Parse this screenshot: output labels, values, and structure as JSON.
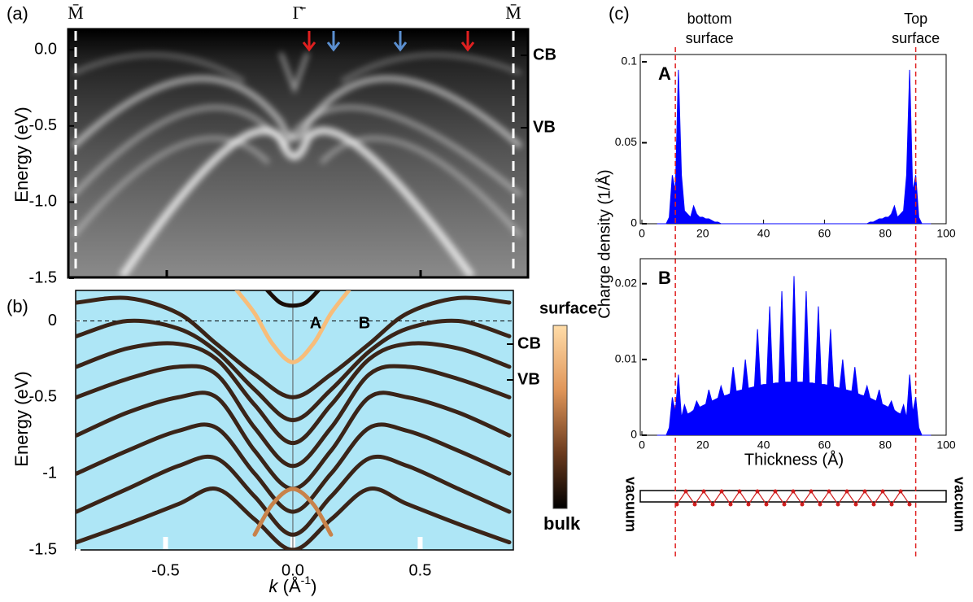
{
  "chart_data": [
    {
      "type": "image",
      "panel_label": "(a)",
      "ylabel": "Energy (eV)",
      "ylim": [
        -1.5,
        0.14
      ],
      "yticks": [
        {
          "value": 0,
          "label": "0.0"
        },
        {
          "value": -0.5,
          "label": "-0.5"
        },
        {
          "value": -1,
          "label": "-1.0"
        },
        {
          "value": -1.5,
          "label": "-1.5"
        }
      ],
      "point_labels": [
        "M̄",
        "Γ̄",
        "M̄"
      ],
      "band_labels": [
        "CB",
        "VB"
      ]
    },
    {
      "type": "line",
      "panel_label": "(b)",
      "ylabel": "Energy (eV)",
      "xlabel": [
        "k",
        " (Å",
        "-1",
        ")"
      ],
      "xlim": [
        -0.853,
        0.866
      ],
      "xticks": [
        {
          "value": -0.5,
          "label": "-0.5"
        },
        {
          "value": 0,
          "label": "0.0"
        },
        {
          "value": 0.5,
          "label": "0.5"
        }
      ],
      "ylim": [
        -1.5,
        0.2
      ],
      "yticks": [
        0,
        -0.5,
        -1,
        -1.5
      ],
      "band_labels": [
        "CB",
        "VB"
      ],
      "point_labels": [
        "A",
        "B"
      ],
      "colorbar_labels": [
        "surface",
        "bulk"
      ],
      "series": [
        {
          "color": "#3a2418",
          "x": [
            -0.85,
            -0.65,
            -0.45,
            -0.3,
            -0.15,
            0,
            0.15,
            0.3,
            0.45,
            0.65,
            0.85
          ],
          "values": [
            0.12,
            0.15,
            0.05,
            -0.15,
            -0.35,
            -0.5,
            -0.35,
            -0.15,
            0.05,
            0.15,
            0.12
          ]
        },
        {
          "color": "#3a2418",
          "x": [
            -0.85,
            -0.65,
            -0.45,
            -0.3,
            -0.15,
            0,
            0.15,
            0.3,
            0.45,
            0.65,
            0.85
          ],
          "values": [
            -0.1,
            0,
            -0.05,
            -0.2,
            -0.45,
            -0.65,
            -0.45,
            -0.2,
            -0.05,
            0,
            -0.1
          ]
        },
        {
          "color": "#3a2418",
          "x": [
            -0.85,
            -0.65,
            -0.45,
            -0.3,
            -0.15,
            0,
            0.15,
            0.3,
            0.45,
            0.65,
            0.85
          ],
          "values": [
            -0.3,
            -0.18,
            -0.15,
            -0.25,
            -0.55,
            -0.8,
            -0.55,
            -0.25,
            -0.15,
            -0.18,
            -0.3
          ]
        },
        {
          "color": "#3a2418",
          "x": [
            -0.85,
            -0.65,
            -0.45,
            -0.3,
            -0.15,
            0,
            0.15,
            0.3,
            0.45,
            0.65,
            0.85
          ],
          "values": [
            -0.5,
            -0.38,
            -0.3,
            -0.35,
            -0.7,
            -0.95,
            -0.7,
            -0.35,
            -0.3,
            -0.38,
            -0.5
          ]
        },
        {
          "color": "#3a2418",
          "x": [
            -0.85,
            -0.65,
            -0.45,
            -0.3,
            -0.15,
            0,
            0.15,
            0.3,
            0.45,
            0.65,
            0.85
          ],
          "values": [
            -0.75,
            -0.6,
            -0.5,
            -0.5,
            -0.85,
            -1.1,
            -0.85,
            -0.5,
            -0.5,
            -0.6,
            -0.75
          ]
        },
        {
          "color": "#3a2418",
          "x": [
            -0.85,
            -0.65,
            -0.45,
            -0.3,
            -0.15,
            0,
            0.15,
            0.3,
            0.45,
            0.65,
            0.85
          ],
          "values": [
            -1,
            -0.85,
            -0.72,
            -0.7,
            -1,
            -1.25,
            -1,
            -0.7,
            -0.72,
            -0.85,
            -1
          ]
        },
        {
          "color": "#3a2418",
          "x": [
            -0.85,
            -0.65,
            -0.45,
            -0.3,
            -0.15,
            0,
            0.15,
            0.3,
            0.45,
            0.65,
            0.85
          ],
          "values": [
            -1.25,
            -1.1,
            -0.95,
            -0.9,
            -1.15,
            -1.4,
            -1.15,
            -0.9,
            -0.95,
            -1.1,
            -1.25
          ]
        },
        {
          "color": "#3a2418",
          "x": [
            -0.85,
            -0.65,
            -0.45,
            -0.3,
            -0.15,
            0,
            0.15,
            0.3,
            0.45,
            0.65,
            0.85
          ],
          "values": [
            -1.45,
            -1.33,
            -1.2,
            -1.1,
            -1.3,
            -1.5,
            -1.3,
            -1.1,
            -1.2,
            -1.33,
            -1.45
          ]
        },
        {
          "color": "#1a0e08",
          "x": [
            -0.1,
            -0.05,
            0,
            0.05,
            0.1
          ],
          "values": [
            0.2,
            0.12,
            0.1,
            0.12,
            0.2
          ]
        },
        {
          "color": "#c8824a",
          "x": [
            -0.15,
            -0.08,
            0,
            0.08,
            0.15
          ],
          "values": [
            -1.4,
            -1.2,
            -1.1,
            -1.2,
            -1.4
          ]
        },
        {
          "color": "#f7bd7a",
          "x": [
            -0.22,
            -0.15,
            -0.08,
            0,
            0.08,
            0.15,
            0.22
          ],
          "values": [
            0.2,
            0.05,
            -0.15,
            -0.27,
            -0.15,
            0.05,
            0.2
          ]
        }
      ]
    },
    {
      "type": "area",
      "panel_label": "(c)",
      "ylabel": "Charge density (1/Å)",
      "point_label": "A",
      "surface_labels": [
        [
          "bottom",
          "surface"
        ],
        [
          "Top",
          "surface"
        ]
      ],
      "surface_x": [
        11,
        90
      ],
      "color": "#0000ff",
      "xlim": [
        0,
        100
      ],
      "xticks": [
        0,
        20,
        40,
        60,
        80,
        100
      ],
      "ylim": [
        0,
        0.1045
      ],
      "yticks": [
        0,
        0.05,
        0.1
      ],
      "x": [
        5,
        6,
        7,
        8,
        9,
        10,
        11,
        12,
        13,
        14,
        15,
        16,
        17,
        18,
        19,
        20,
        21,
        22,
        23,
        24,
        25,
        26,
        27,
        28,
        29,
        30,
        31,
        32,
        33,
        34,
        35,
        36,
        37,
        38,
        39,
        40,
        41,
        42,
        43,
        44,
        45,
        46,
        47,
        48,
        49,
        50,
        51,
        52,
        53,
        54,
        55,
        56,
        57,
        58,
        59,
        60,
        61,
        62,
        63,
        64,
        65,
        66,
        67,
        68,
        69,
        70,
        71,
        72,
        73,
        74,
        75,
        76,
        77,
        78,
        79,
        80,
        81,
        82,
        83,
        84,
        85,
        86,
        87,
        88,
        89,
        90,
        91,
        92,
        93,
        94,
        95
      ],
      "values": [
        0,
        0,
        0,
        0,
        0.004,
        0.03,
        0.02,
        0.095,
        0.03,
        0.008,
        0.006,
        0.004,
        0.011,
        0.006,
        0.004,
        0.004,
        0.003,
        0.003,
        0.002,
        0.001,
        0.001,
        0,
        0,
        0,
        0,
        0,
        0,
        0,
        0,
        0,
        0,
        0,
        0,
        0,
        0,
        0,
        0,
        0,
        0,
        0,
        0,
        0,
        0,
        0,
        0,
        0,
        0,
        0,
        0,
        0,
        0,
        0,
        0,
        0,
        0,
        0,
        0,
        0,
        0,
        0,
        0,
        0,
        0,
        0,
        0,
        0,
        0,
        0,
        0,
        0,
        0.001,
        0.001,
        0.002,
        0.003,
        0.003,
        0.004,
        0.004,
        0.006,
        0.011,
        0.004,
        0.006,
        0.008,
        0.03,
        0.095,
        0.02,
        0.03,
        0.004,
        0,
        0,
        0,
        0
      ]
    },
    {
      "type": "area",
      "point_label": "B",
      "xlabel": "Thickness (Å)",
      "vacuum_labels": [
        "vacuum",
        "vacuum"
      ],
      "color": "#0000ff",
      "xlim": [
        0,
        100
      ],
      "xticks": [
        0,
        20,
        40,
        60,
        80,
        100
      ],
      "ylim": [
        0,
        0.0233
      ],
      "yticks": [
        0,
        0.01,
        0.02
      ],
      "x": [
        5,
        6,
        7,
        8,
        9,
        10,
        11,
        12,
        13,
        14,
        15,
        16,
        17,
        18,
        19,
        20,
        21,
        22,
        23,
        24,
        25,
        26,
        27,
        28,
        29,
        30,
        31,
        32,
        33,
        34,
        35,
        36,
        37,
        38,
        39,
        40,
        41,
        42,
        43,
        44,
        45,
        46,
        47,
        48,
        49,
        50,
        51,
        52,
        53,
        54,
        55,
        56,
        57,
        58,
        59,
        60,
        61,
        62,
        63,
        64,
        65,
        66,
        67,
        68,
        69,
        70,
        71,
        72,
        73,
        74,
        75,
        76,
        77,
        78,
        79,
        80,
        81,
        82,
        83,
        84,
        85,
        86,
        87,
        88,
        89,
        90,
        91,
        92,
        93,
        94,
        95
      ],
      "values": [
        0,
        0,
        0,
        0,
        0.001,
        0.005,
        0.003,
        0.008,
        0.0023,
        0.004,
        0.0028,
        0.003,
        0.0033,
        0.0045,
        0.0037,
        0.0039,
        0.0041,
        0.006,
        0.0045,
        0.0047,
        0.0049,
        0.0065,
        0.0052,
        0.0053,
        0.0055,
        0.009,
        0.0058,
        0.0059,
        0.006,
        0.01,
        0.0062,
        0.0063,
        0.0064,
        0.014,
        0.0066,
        0.0067,
        0.0067,
        0.017,
        0.0068,
        0.0069,
        0.0069,
        0.019,
        0.007,
        0.007,
        0.007,
        0.021,
        0.007,
        0.007,
        0.007,
        0.019,
        0.0069,
        0.0069,
        0.0068,
        0.017,
        0.0067,
        0.0067,
        0.0066,
        0.014,
        0.0064,
        0.0063,
        0.0062,
        0.01,
        0.006,
        0.0059,
        0.0058,
        0.009,
        0.0055,
        0.0053,
        0.0052,
        0.0065,
        0.0049,
        0.0047,
        0.0045,
        0.006,
        0.0041,
        0.0039,
        0.0037,
        0.0045,
        0.0033,
        0.003,
        0.0028,
        0.004,
        0.0023,
        0.008,
        0.003,
        0.005,
        0.001,
        0,
        0,
        0,
        0
      ]
    }
  ]
}
